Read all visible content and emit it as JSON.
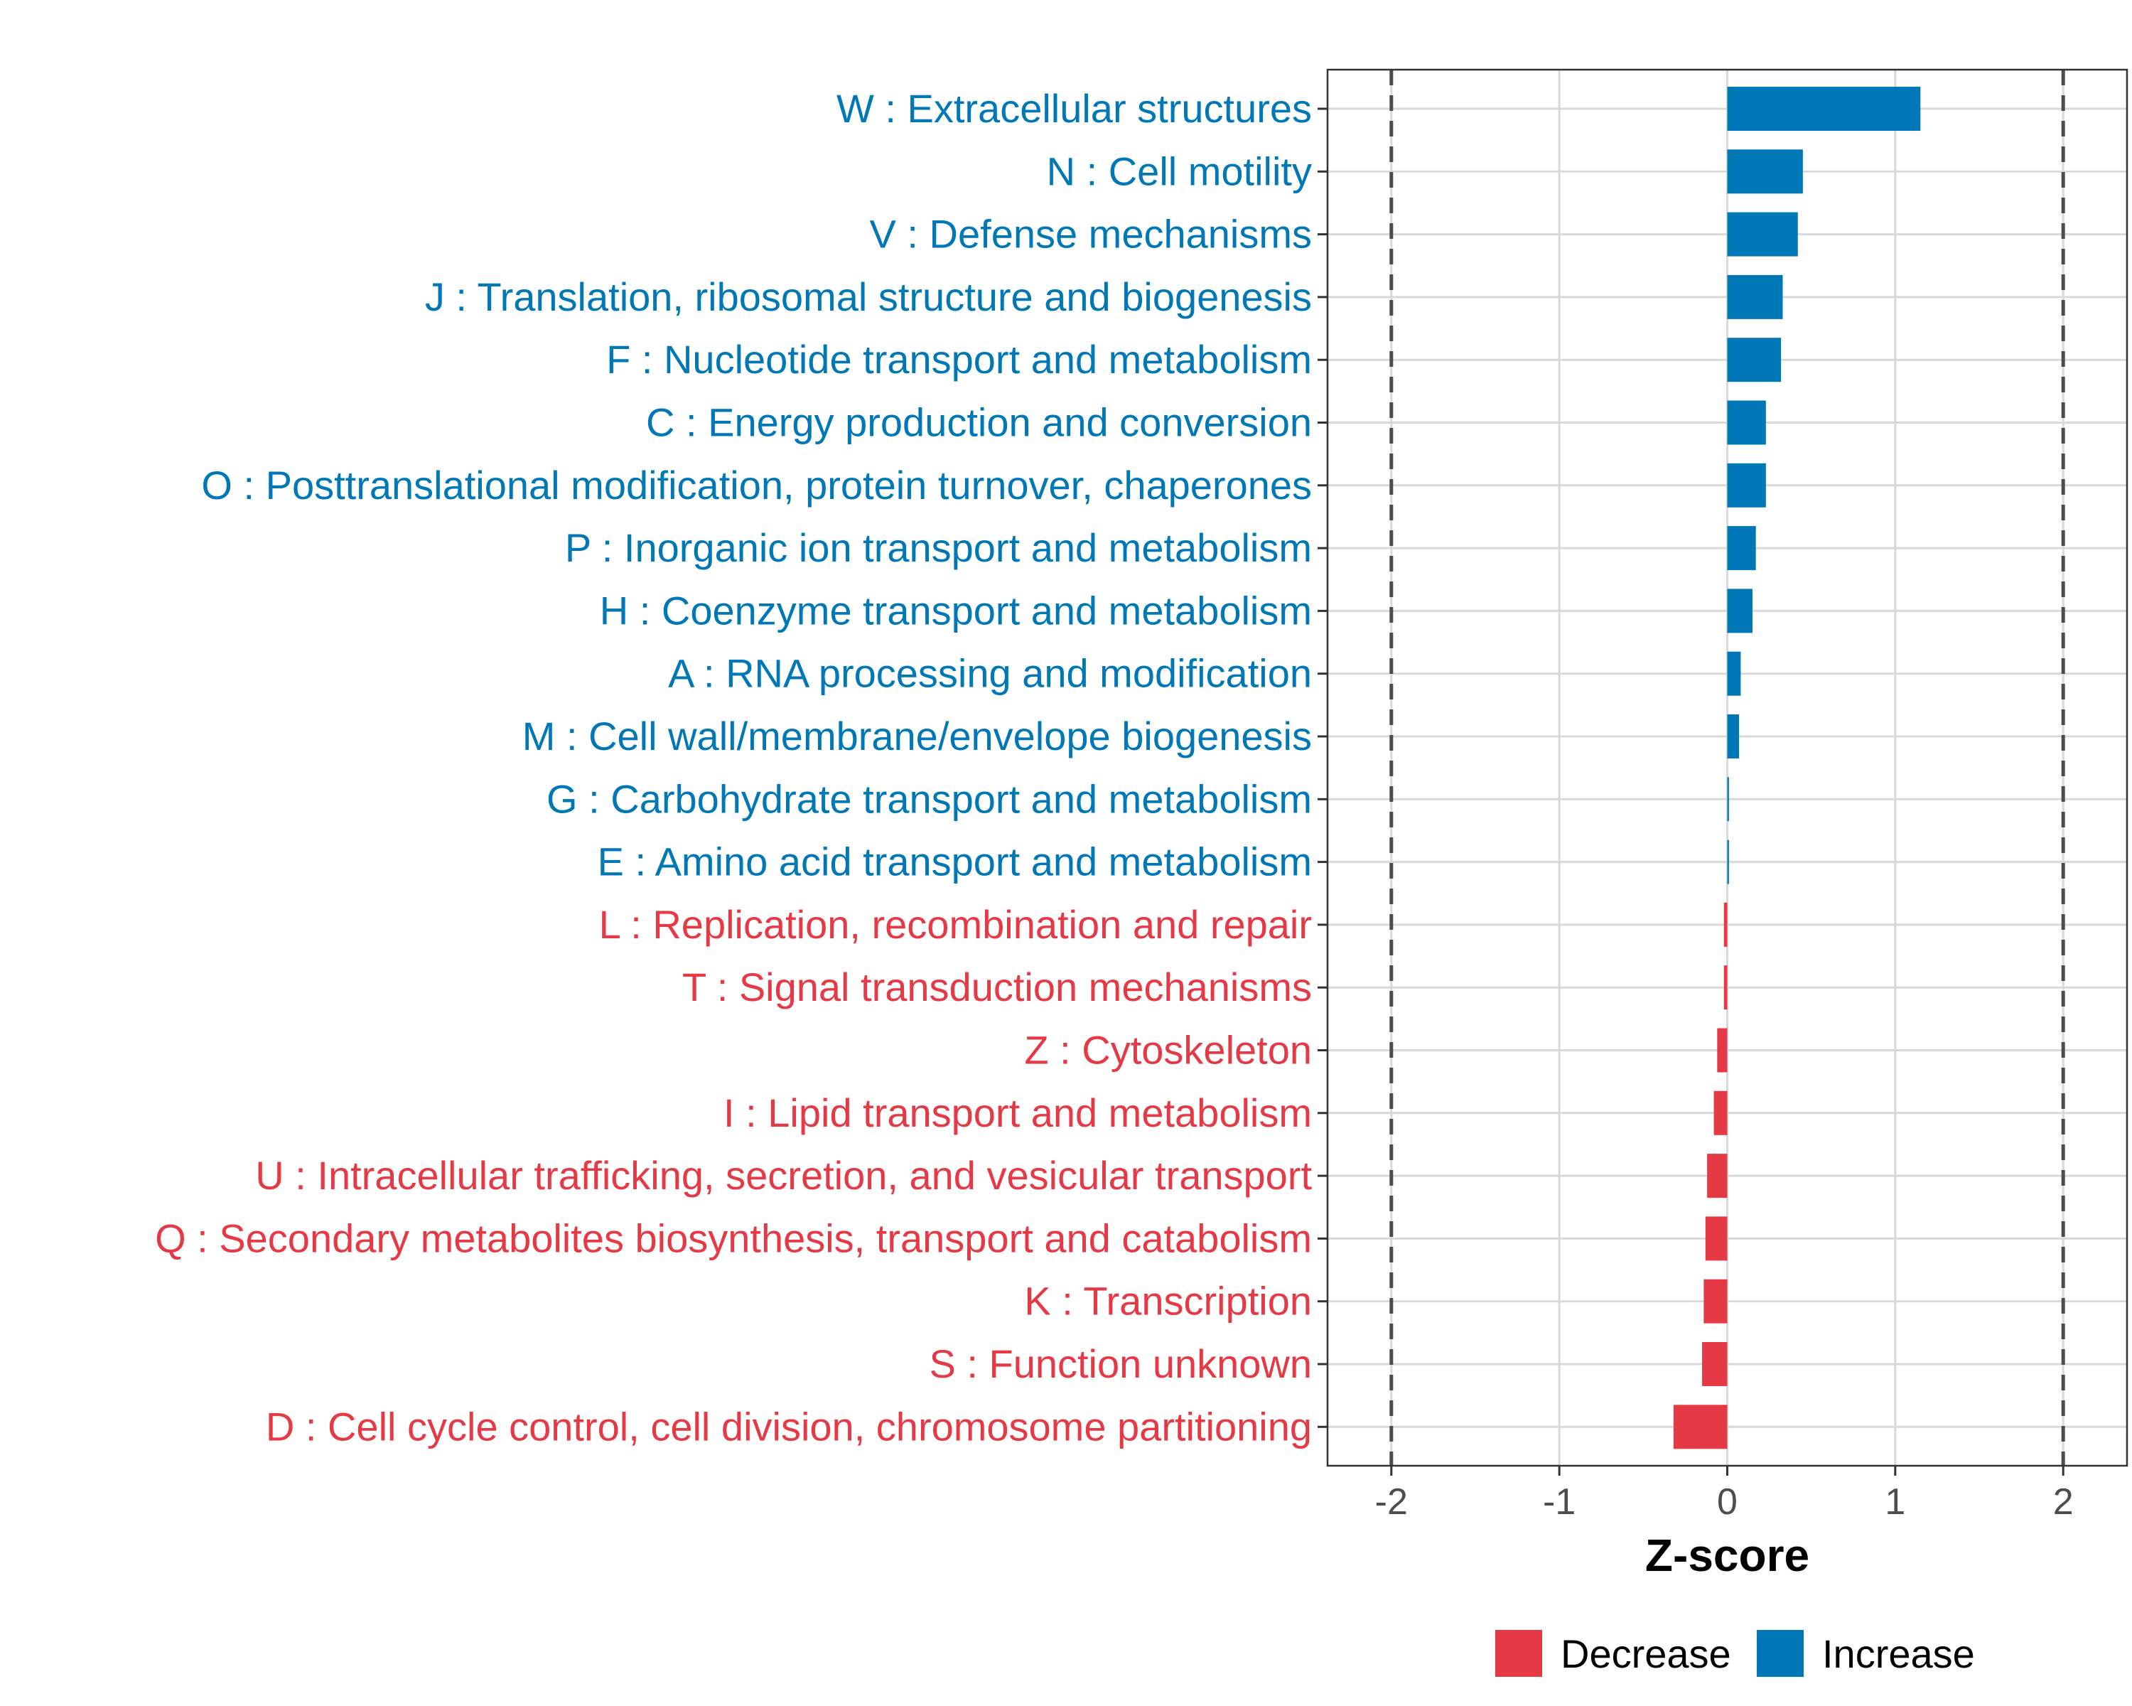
{
  "chart_data": {
    "type": "bar",
    "orientation": "horizontal",
    "xlabel": "Z-score",
    "xlim": [
      -2.38,
      2.38
    ],
    "x_ticks": [
      -2,
      -1,
      0,
      1,
      2
    ],
    "x_tick_labels": [
      "-2",
      "-1",
      "0",
      "1",
      "2"
    ],
    "reference_lines": [
      -2,
      2
    ],
    "grid": true,
    "legend_position": "bottom",
    "legend": [
      {
        "key": "decrease",
        "label": "Decrease",
        "color": "#E63946"
      },
      {
        "key": "increase",
        "label": "Increase",
        "color": "#0077B6"
      }
    ],
    "bars": [
      {
        "label": "W : Extracellular structures",
        "value": 1.15,
        "group": "increase"
      },
      {
        "label": "N : Cell motility",
        "value": 0.45,
        "group": "increase"
      },
      {
        "label": "V : Defense mechanisms",
        "value": 0.42,
        "group": "increase"
      },
      {
        "label": "J : Translation, ribosomal structure and biogenesis",
        "value": 0.33,
        "group": "increase"
      },
      {
        "label": "F : Nucleotide transport and metabolism",
        "value": 0.32,
        "group": "increase"
      },
      {
        "label": "C : Energy production and conversion",
        "value": 0.23,
        "group": "increase"
      },
      {
        "label": "O : Posttranslational modification, protein turnover, chaperones",
        "value": 0.23,
        "group": "increase"
      },
      {
        "label": "P : Inorganic ion transport and metabolism",
        "value": 0.17,
        "group": "increase"
      },
      {
        "label": "H : Coenzyme transport and metabolism",
        "value": 0.15,
        "group": "increase"
      },
      {
        "label": "A : RNA processing and modification",
        "value": 0.08,
        "group": "increase"
      },
      {
        "label": "M : Cell wall/membrane/envelope biogenesis",
        "value": 0.07,
        "group": "increase"
      },
      {
        "label": "G : Carbohydrate transport and metabolism",
        "value": 0.01,
        "group": "increase"
      },
      {
        "label": "E : Amino acid transport and metabolism",
        "value": 0.01,
        "group": "increase"
      },
      {
        "label": "L : Replication, recombination and repair",
        "value": -0.02,
        "group": "decrease"
      },
      {
        "label": "T : Signal transduction mechanisms",
        "value": -0.02,
        "group": "decrease"
      },
      {
        "label": "Z : Cytoskeleton",
        "value": -0.06,
        "group": "decrease"
      },
      {
        "label": "I : Lipid transport and metabolism",
        "value": -0.08,
        "group": "decrease"
      },
      {
        "label": "U : Intracellular trafficking, secretion, and vesicular transport",
        "value": -0.12,
        "group": "decrease"
      },
      {
        "label": "Q : Secondary metabolites biosynthesis, transport and catabolism",
        "value": -0.13,
        "group": "decrease"
      },
      {
        "label": "K : Transcription",
        "value": -0.14,
        "group": "decrease"
      },
      {
        "label": "S : Function unknown",
        "value": -0.15,
        "group": "decrease"
      },
      {
        "label": "D : Cell cycle control, cell division, chromosome partitioning",
        "value": -0.32,
        "group": "decrease"
      }
    ]
  }
}
